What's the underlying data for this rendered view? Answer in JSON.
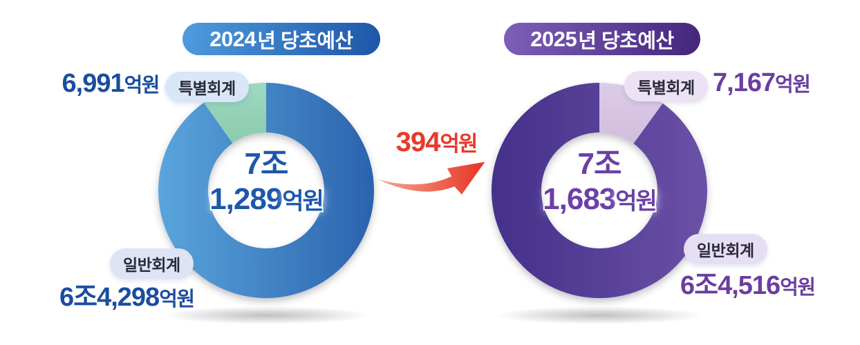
{
  "page": {
    "background": "#FFFFFF"
  },
  "colors": {
    "left_value_text": "#1B4DA0",
    "left_center_text": "#1C57AB",
    "right_value_text": "#6A3EA0",
    "right_center_text": "#6C40A6",
    "difference_red": "#E9392B",
    "pill_text": "#2A2A3C",
    "badge_2024_gradient": [
      "#4E9CDE",
      "#1E55A8"
    ],
    "badge_2025_gradient": [
      "#7E60BA",
      "#43257C"
    ]
  },
  "left": {
    "title_year": "2024",
    "title_rest": "년 당초예산",
    "center": {
      "line1": "7조",
      "num": "1,289",
      "unit": "억원"
    },
    "special": {
      "badge": "특별회계",
      "num": "6,991",
      "unit": "억원"
    },
    "general": {
      "badge": "일반회계",
      "num": "6조4,298",
      "unit": "억원"
    }
  },
  "right": {
    "title_year": "2025",
    "title_rest": "년 당초예산",
    "center": {
      "line1": "7조",
      "num": "1,683",
      "unit": "억원"
    },
    "special": {
      "badge": "특별회계",
      "num": "7,167",
      "unit": "억원"
    },
    "general": {
      "badge": "일반회계",
      "num": "6조4,516",
      "unit": "억원"
    }
  },
  "arrow": {
    "num": "394",
    "unit": "억원"
  },
  "chart_data": [
    {
      "type": "pie",
      "variant": "donut",
      "title": "2024년 당초예산",
      "labels": [
        "일반회계",
        "특별회계"
      ],
      "values": [
        64298,
        6991
      ],
      "unit": "억원",
      "total": 71289,
      "center_label": "7조 1,289억원",
      "special_side": "left",
      "legend_position": "outside",
      "colors": {
        "general": [
          "#5AA5DC",
          "#2B63AE"
        ],
        "special": [
          "#9ED8C1",
          "#8CCBAE"
        ]
      }
    },
    {
      "type": "pie",
      "variant": "donut",
      "title": "2025년 당초예산",
      "labels": [
        "일반회계",
        "특별회계"
      ],
      "values": [
        64516,
        7167
      ],
      "unit": "억원",
      "total": 71683,
      "center_label": "7조 1,683억원",
      "special_side": "right",
      "legend_position": "outside",
      "colors": {
        "general": [
          "#44308A",
          "#6B51A6"
        ],
        "special": [
          "#DCCBE7",
          "#D1BDDE"
        ]
      }
    }
  ],
  "annotation": {
    "difference_value": 394,
    "difference_label": "394억원"
  }
}
